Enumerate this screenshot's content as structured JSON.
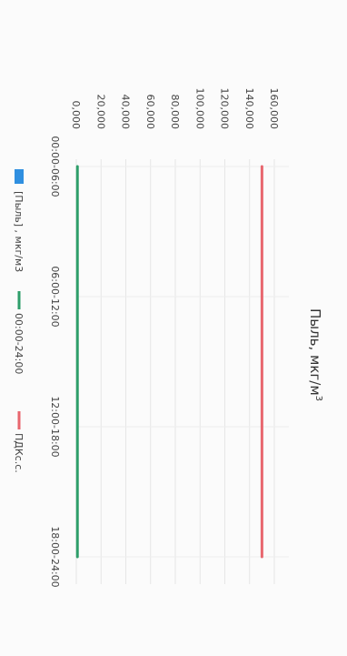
{
  "chart_data": {
    "type": "line",
    "title": "Пыль, мкг/м",
    "title_sup": "3",
    "categories": [
      "00:00-06:00",
      "06:00-12:00",
      "12:00-18:00",
      "18:00-24:00"
    ],
    "y_ticks": [
      "0,000",
      "20,000",
      "40,000",
      "60,000",
      "80,000",
      "100,000",
      "120,000",
      "140,000",
      "160,000"
    ],
    "ylim": [
      0,
      160
    ],
    "grid": true,
    "legend_position": "bottom",
    "series": [
      {
        "name": "[Пыль] , мкг/м3",
        "kind": "bar",
        "color": "#2f8fe0",
        "values": [
          null,
          null,
          null,
          null
        ]
      },
      {
        "name": "00:00-24:00",
        "kind": "line",
        "color": "#2e9e6a",
        "values": [
          0.9,
          0.9,
          0.9,
          0.9
        ]
      },
      {
        "name": "ПДКс.с.",
        "kind": "line",
        "color": "#e8666e",
        "values": [
          150,
          150,
          150,
          150
        ]
      }
    ]
  }
}
